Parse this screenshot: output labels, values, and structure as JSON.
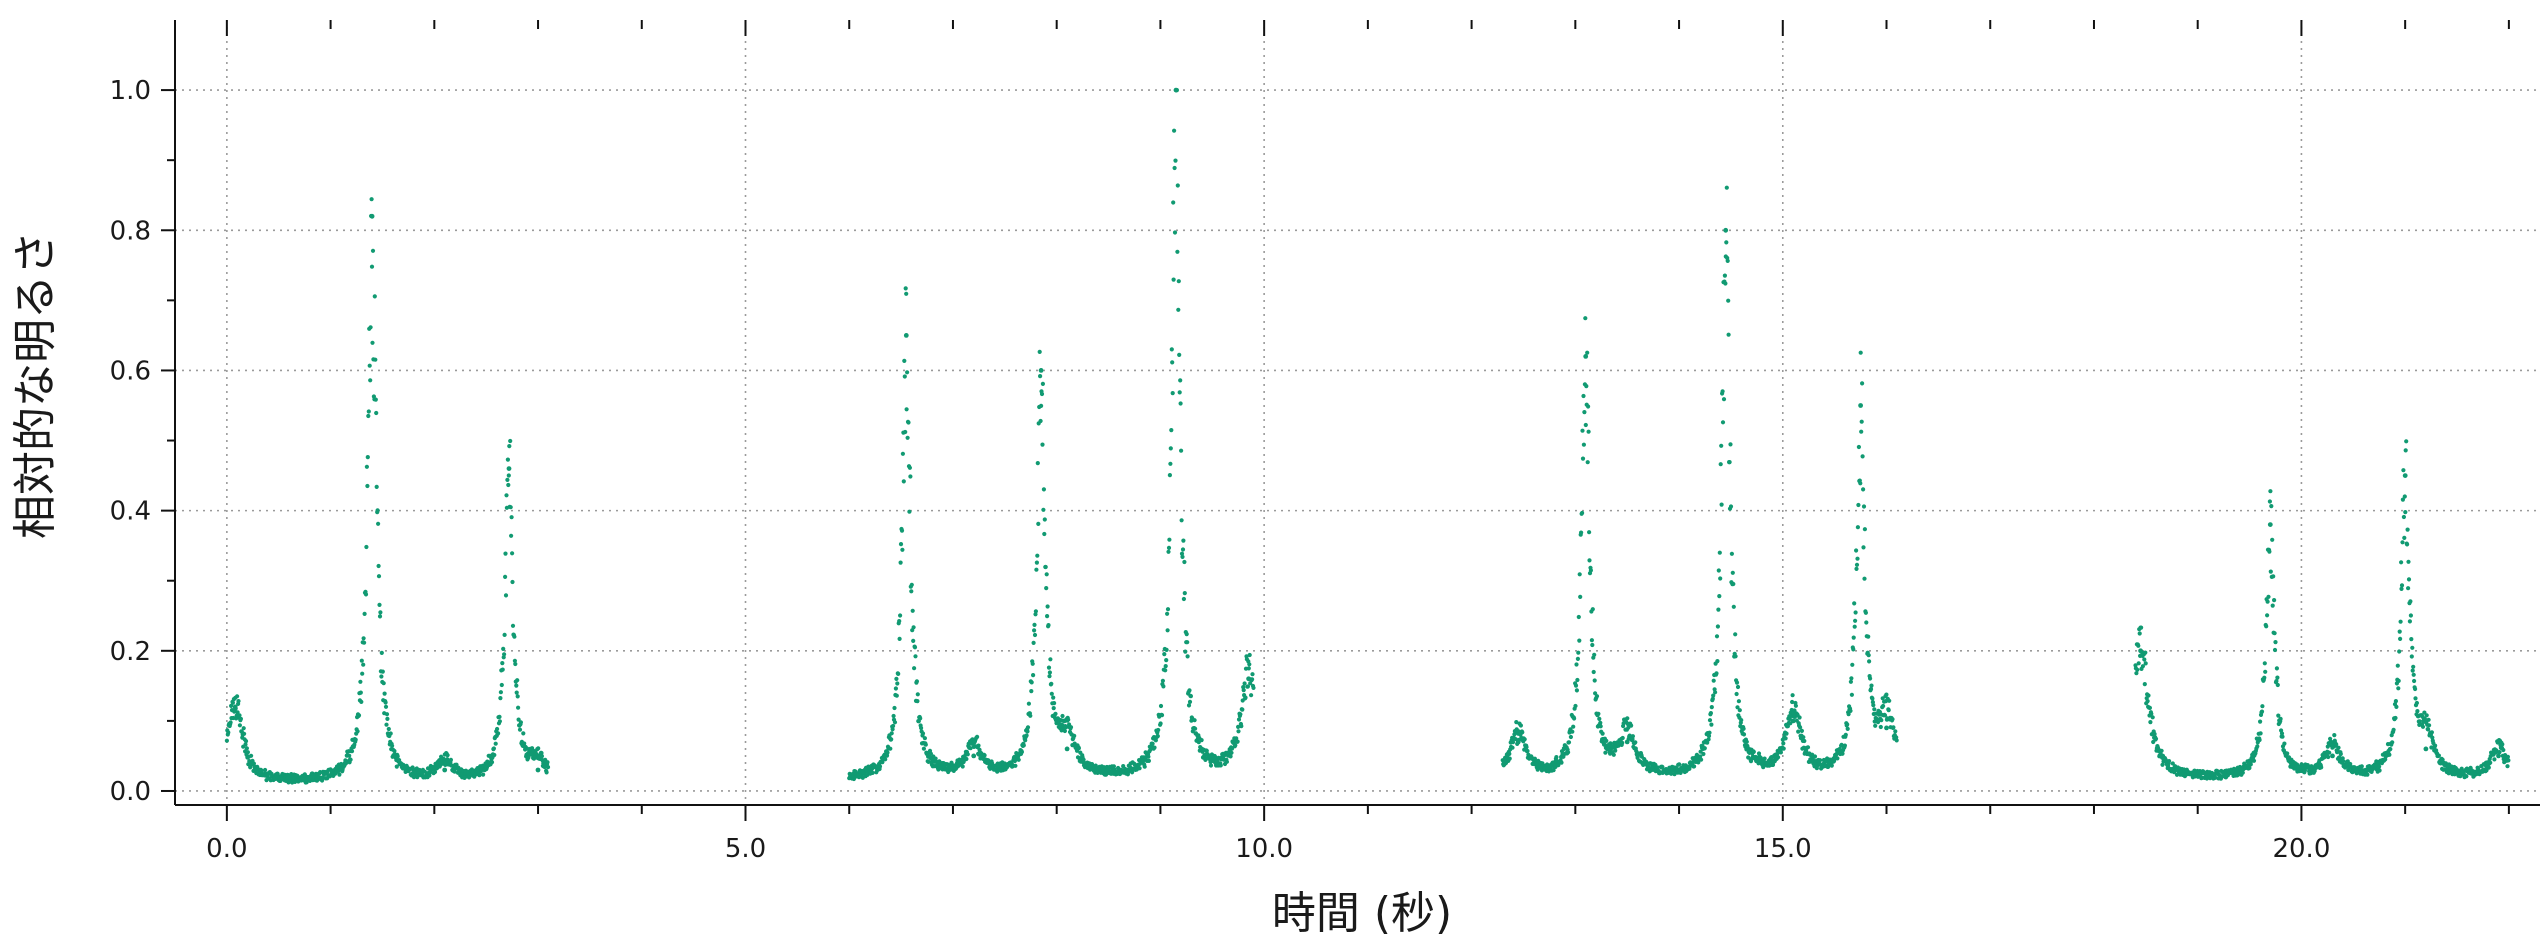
{
  "chart_data": {
    "type": "scatter",
    "title": "",
    "xlabel": "時間 (秒)",
    "ylabel": "相対的な明るさ",
    "xlim": [
      -0.5,
      22.3
    ],
    "ylim": [
      -0.02,
      1.1
    ],
    "x_ticks": [
      0.0,
      5.0,
      10.0,
      15.0,
      20.0
    ],
    "x_tick_labels": [
      "0.0",
      "5.0",
      "10.0",
      "15.0",
      "20.0"
    ],
    "y_ticks": [
      0.0,
      0.2,
      0.4,
      0.6,
      0.8,
      1.0
    ],
    "y_tick_labels": [
      "0.0",
      "0.2",
      "0.4",
      "0.6",
      "0.8",
      "1.0"
    ],
    "grid": true,
    "legend": "none",
    "point_color": "#119a72",
    "segments": [
      {
        "x_start": 0.0,
        "x_end": 3.1,
        "baseline": 0.005
      },
      {
        "x_start": 6.0,
        "x_end": 9.9,
        "baseline": 0.01
      },
      {
        "x_start": 12.3,
        "x_end": 16.1,
        "baseline": 0.01
      },
      {
        "x_start": 18.4,
        "x_end": 22.0,
        "baseline": 0.01
      }
    ],
    "flares": [
      {
        "x": 0.08,
        "peak": 0.12
      },
      {
        "x": 1.4,
        "peak": 0.82
      },
      {
        "x": 2.1,
        "peak": 0.03
      },
      {
        "x": 2.72,
        "peak": 0.46
      },
      {
        "x": 3.0,
        "peak": 0.03
      },
      {
        "x": 6.55,
        "peak": 0.65
      },
      {
        "x": 7.2,
        "peak": 0.05
      },
      {
        "x": 7.85,
        "peak": 0.6
      },
      {
        "x": 8.1,
        "peak": 0.06
      },
      {
        "x": 9.15,
        "peak": 1.0
      },
      {
        "x": 9.85,
        "peak": 0.16
      },
      {
        "x": 12.45,
        "peak": 0.07
      },
      {
        "x": 13.1,
        "peak": 0.62
      },
      {
        "x": 13.5,
        "peak": 0.07
      },
      {
        "x": 14.45,
        "peak": 0.8
      },
      {
        "x": 15.1,
        "peak": 0.1
      },
      {
        "x": 15.75,
        "peak": 0.55
      },
      {
        "x": 16.0,
        "peak": 0.09
      },
      {
        "x": 18.45,
        "peak": 0.2
      },
      {
        "x": 19.7,
        "peak": 0.38
      },
      {
        "x": 20.3,
        "peak": 0.05
      },
      {
        "x": 21.0,
        "peak": 0.45
      },
      {
        "x": 21.2,
        "peak": 0.06
      },
      {
        "x": 21.9,
        "peak": 0.05
      }
    ]
  }
}
